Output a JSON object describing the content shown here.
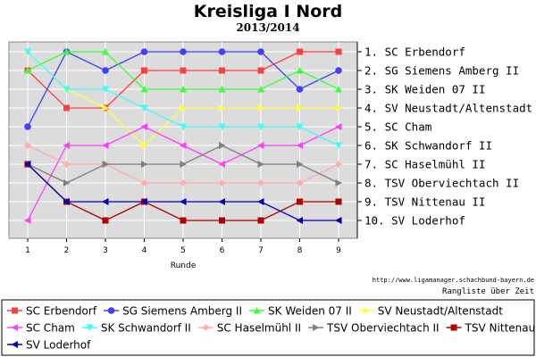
{
  "chart_data": {
    "type": "line",
    "title": "Kreisliga I Nord",
    "subtitle": "2013/2014",
    "xlabel": "Runde",
    "ylabel": "",
    "x": [
      1,
      2,
      3,
      4,
      5,
      6,
      7,
      8,
      9
    ],
    "ylim": [
      1,
      10
    ],
    "y_inverted": true,
    "grid": true,
    "legend_position": "bottom",
    "rank_labels": [
      "1. SC Erbendorf",
      "2. SG Siemens Amberg II",
      "3. SK Weiden 07 II",
      "4. SV Neustadt/Altenstadt",
      "5. SC Cham",
      "6. SK Schwandorf II",
      "7. SC Haselmühl II",
      "8. TSV Oberviechtach II",
      "9. TSV Nittenau II",
      "10. SV Loderhof"
    ],
    "series": [
      {
        "name": "SC Erbendorf",
        "color": "#ff4040",
        "marker": "square",
        "values": [
          2,
          4,
          4,
          2,
          2,
          2,
          2,
          1,
          1
        ]
      },
      {
        "name": "SG Siemens Amberg II",
        "color": "#4040ff",
        "marker": "circle",
        "values": [
          5,
          1,
          2,
          1,
          1,
          1,
          1,
          3,
          2
        ]
      },
      {
        "name": "SK Weiden 07 II",
        "color": "#40ff40",
        "marker": "triangle-up",
        "values": [
          2,
          1,
          1,
          3,
          3,
          3,
          3,
          2,
          3
        ]
      },
      {
        "name": "SV Neustadt/Altenstadt",
        "color": "#ffff40",
        "marker": "triangle-right",
        "values": [
          1,
          3,
          4,
          6,
          4,
          4,
          4,
          4,
          4
        ]
      },
      {
        "name": "SC Cham",
        "color": "#ff40ff",
        "marker": "triangle-left",
        "values": [
          10,
          6,
          6,
          5,
          6,
          7,
          6,
          6,
          5
        ]
      },
      {
        "name": "SK Schwandorf II",
        "color": "#40ffff",
        "marker": "triangle-down",
        "values": [
          1,
          3,
          3,
          4,
          5,
          5,
          5,
          5,
          6
        ]
      },
      {
        "name": "SC Haselmühl II",
        "color": "#ffafaf",
        "marker": "diamond",
        "values": [
          6,
          7,
          7,
          8,
          8,
          8,
          8,
          8,
          7
        ]
      },
      {
        "name": "TSV Oberviechtach II",
        "color": "#808080",
        "marker": "triangle-right",
        "values": [
          7,
          8,
          7,
          7,
          7,
          6,
          7,
          7,
          8
        ]
      },
      {
        "name": "TSV Nittenau II",
        "color": "#b00000",
        "marker": "square",
        "values": [
          7,
          9,
          10,
          9,
          10,
          10,
          10,
          9,
          9
        ]
      },
      {
        "name": "SV Loderhof",
        "color": "#0000b0",
        "marker": "triangle-left",
        "values": [
          7,
          9,
          9,
          9,
          9,
          9,
          9,
          10,
          10
        ]
      }
    ]
  },
  "credit": {
    "url": "http://www.ligamanager.schachbund-bayern.de",
    "caption": "Rangliste über Zeit"
  }
}
